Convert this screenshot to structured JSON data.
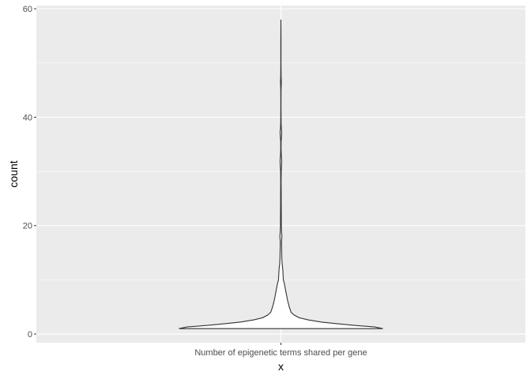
{
  "chart_data": {
    "type": "violin",
    "categories": [
      "Number of epigenetic terms shared per gene"
    ],
    "xlabel": "x",
    "ylabel": "count",
    "ylim": [
      -1.6,
      60.6
    ],
    "yticks": [
      0,
      20,
      40,
      60
    ],
    "grid": true,
    "legend": "none",
    "colors": {
      "panel": "#ebebeb",
      "grid": "#ffffff",
      "outline": "#333333",
      "fill": "#ffffff",
      "tick_text": "#4d4d4d"
    },
    "violin": {
      "min": 1,
      "max": 58,
      "profile": [
        [
          1.0,
          1.0
        ],
        [
          1.3,
          0.92
        ],
        [
          1.6,
          0.72
        ],
        [
          1.9,
          0.55
        ],
        [
          2.2,
          0.4
        ],
        [
          2.6,
          0.27
        ],
        [
          3.0,
          0.18
        ],
        [
          3.5,
          0.13
        ],
        [
          4.0,
          0.1
        ],
        [
          5.0,
          0.082
        ],
        [
          6.0,
          0.068
        ],
        [
          7.0,
          0.057
        ],
        [
          8.0,
          0.047
        ],
        [
          9.0,
          0.037
        ],
        [
          9.5,
          0.031
        ],
        [
          10.0,
          0.024
        ],
        [
          11.0,
          0.021
        ],
        [
          12.0,
          0.018
        ],
        [
          13.0,
          0.012
        ],
        [
          14.0,
          0.009
        ],
        [
          15.0,
          0.008
        ],
        [
          16.0,
          0.007
        ],
        [
          17.0,
          0.006
        ],
        [
          18.0,
          0.01
        ],
        [
          19.0,
          0.006
        ],
        [
          20.0,
          0.004
        ],
        [
          22.0,
          0.004
        ],
        [
          24.0,
          0.003
        ],
        [
          26.0,
          0.003
        ],
        [
          28.0,
          0.002
        ],
        [
          30.0,
          0.003
        ],
        [
          31.0,
          0.006
        ],
        [
          32.0,
          0.008
        ],
        [
          33.0,
          0.004
        ],
        [
          34.0,
          0.002
        ],
        [
          35.5,
          0.002
        ],
        [
          36.5,
          0.006
        ],
        [
          37.2,
          0.008
        ],
        [
          38.0,
          0.004
        ],
        [
          39.0,
          0.002
        ],
        [
          42.0,
          0.001
        ],
        [
          45.0,
          0.0015
        ],
        [
          46.5,
          0.004
        ],
        [
          47.5,
          0.002
        ],
        [
          50.0,
          0.001
        ],
        [
          54.0,
          0.001
        ],
        [
          58.0,
          0.0
        ]
      ]
    }
  }
}
